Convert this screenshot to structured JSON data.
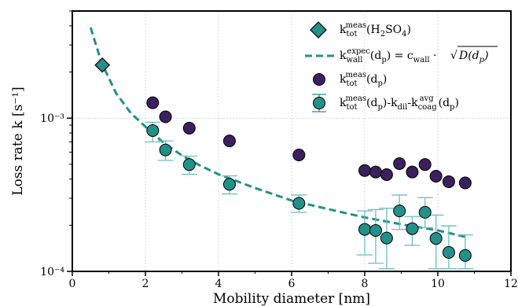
{
  "chart_data": {
    "type": "scatter",
    "title": "",
    "xlabel": "Mobility diameter [nm]",
    "ylabel": "Loss rate k [s⁻¹]",
    "xlim": [
      0,
      12
    ],
    "ylim": [
      0.0001,
      0.005
    ],
    "yscale": "log",
    "grid": true,
    "legend_position": "upper-right",
    "x_ticks": [
      0,
      2,
      4,
      6,
      8,
      10,
      12
    ],
    "x_tick_labels": [
      "0",
      "2",
      "4",
      "6",
      "8",
      "10",
      "12"
    ],
    "y_ticks": [
      0.0001,
      0.001
    ],
    "y_tick_labels": [
      "10⁻⁴",
      "10⁻³"
    ],
    "colors": {
      "teal": "#23908a",
      "purple": "#3b1f5e",
      "errorbar": "#6fbfb9"
    },
    "series": [
      {
        "name": "k_tot^meas(H2SO4)",
        "kind": "diamond",
        "color": "#23908a",
        "points": [
          {
            "x": 0.82,
            "y": 0.00222
          }
        ]
      },
      {
        "name": "k_wall^expec(d_p) = c_wall · √D(d_p)",
        "kind": "dashed-line",
        "color": "#23908a",
        "points": [
          {
            "x": 0.5,
            "y": 0.0039
          },
          {
            "x": 0.8,
            "y": 0.0023
          },
          {
            "x": 1.2,
            "y": 0.00145
          },
          {
            "x": 1.6,
            "y": 0.00108
          },
          {
            "x": 2.0,
            "y": 0.00088
          },
          {
            "x": 2.5,
            "y": 0.00069
          },
          {
            "x": 3.0,
            "y": 0.00057
          },
          {
            "x": 3.5,
            "y": 0.00049
          },
          {
            "x": 4.0,
            "y": 0.00043
          },
          {
            "x": 5.0,
            "y": 0.00035
          },
          {
            "x": 6.0,
            "y": 0.00029
          },
          {
            "x": 7.0,
            "y": 0.000255
          },
          {
            "x": 8.0,
            "y": 0.000225
          },
          {
            "x": 9.0,
            "y": 0.000203
          },
          {
            "x": 10.0,
            "y": 0.000185
          },
          {
            "x": 10.8,
            "y": 0.000167
          }
        ]
      },
      {
        "name": "k_tot^meas(d_p)",
        "kind": "circle",
        "color": "#3b1f5e",
        "points": [
          {
            "x": 2.2,
            "y": 0.00126
          },
          {
            "x": 2.55,
            "y": 0.00102
          },
          {
            "x": 3.2,
            "y": 0.00086
          },
          {
            "x": 4.3,
            "y": 0.00071
          },
          {
            "x": 6.2,
            "y": 0.000575
          },
          {
            "x": 8.0,
            "y": 0.000455
          },
          {
            "x": 8.3,
            "y": 0.000445
          },
          {
            "x": 8.6,
            "y": 0.000428
          },
          {
            "x": 8.95,
            "y": 0.000505
          },
          {
            "x": 9.3,
            "y": 0.000445
          },
          {
            "x": 9.65,
            "y": 0.000498
          },
          {
            "x": 9.95,
            "y": 0.000418
          },
          {
            "x": 10.3,
            "y": 0.000385
          },
          {
            "x": 10.75,
            "y": 0.000378
          }
        ]
      },
      {
        "name": "k_tot^meas(d_p)-k_dil-k_coag^avg(d_p)",
        "kind": "circle-errorbar",
        "color": "#23908a",
        "points": [
          {
            "x": 2.2,
            "y": 0.00083,
            "lo": 0.0007,
            "hi": 0.00094
          },
          {
            "x": 2.55,
            "y": 0.00062,
            "lo": 0.00053,
            "hi": 0.00071
          },
          {
            "x": 3.2,
            "y": 0.000498,
            "lo": 0.00043,
            "hi": 0.000565
          },
          {
            "x": 4.3,
            "y": 0.00037,
            "lo": 0.00032,
            "hi": 0.00042
          },
          {
            "x": 6.2,
            "y": 0.000278,
            "lo": 0.000243,
            "hi": 0.000315
          },
          {
            "x": 8.0,
            "y": 0.000188,
            "lo": 0.000128,
            "hi": 0.000248
          },
          {
            "x": 8.3,
            "y": 0.000185,
            "lo": 0.000113,
            "hi": 0.000253
          },
          {
            "x": 8.6,
            "y": 0.000165,
            "lo": 0.000104,
            "hi": 0.000258
          },
          {
            "x": 8.95,
            "y": 0.000248,
            "lo": 0.000188,
            "hi": 0.000315
          },
          {
            "x": 9.3,
            "y": 0.00019,
            "lo": 0.000148,
            "hi": 0.000228
          },
          {
            "x": 9.65,
            "y": 0.000243,
            "lo": 0.000193,
            "hi": 0.000303
          },
          {
            "x": 9.95,
            "y": 0.000164,
            "lo": 0.000104,
            "hi": 0.000233
          },
          {
            "x": 10.3,
            "y": 0.000133,
            "lo": 0.000104,
            "hi": 0.000198
          },
          {
            "x": 10.75,
            "y": 0.000127,
            "lo": 0.000104,
            "hi": 0.000173
          }
        ]
      }
    ]
  }
}
